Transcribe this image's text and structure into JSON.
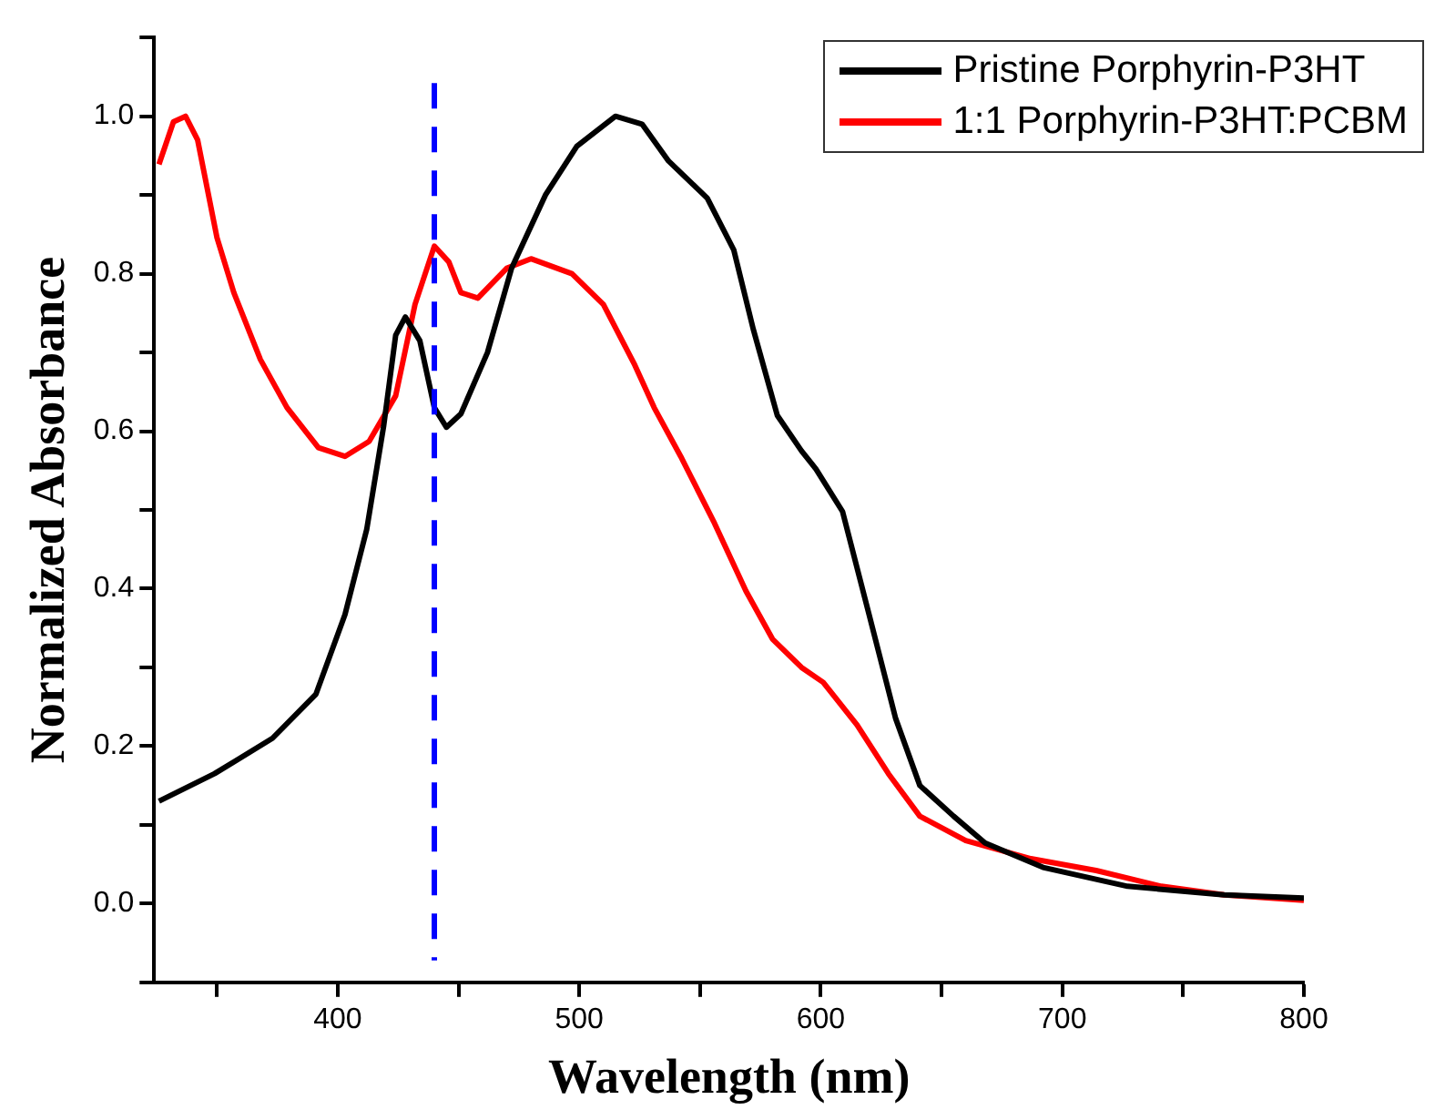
{
  "chart_data": {
    "type": "line",
    "xlabel": "Wavelength (nm)",
    "ylabel": "Normalized Absorbance",
    "xlim": [
      324,
      800
    ],
    "ylim": [
      -0.1,
      1.1
    ],
    "xticks": [
      {
        "value": 350,
        "label": null
      },
      400,
      {
        "value": 450,
        "label": null
      },
      500,
      {
        "value": 550,
        "label": null
      },
      600,
      {
        "value": 650,
        "label": null
      },
      700,
      {
        "value": 750,
        "label": null
      },
      800
    ],
    "yticks": [
      {
        "value": -0.1,
        "label": null
      },
      {
        "value": 0,
        "label": "0.0"
      },
      {
        "value": 0.1,
        "label": null
      },
      0.2,
      {
        "value": 0.3,
        "label": null
      },
      0.4,
      {
        "value": 0.5,
        "label": null
      },
      0.6,
      {
        "value": 0.7,
        "label": null
      },
      0.8,
      {
        "value": 0.9,
        "label": null
      },
      {
        "value": 1,
        "label": "1.0"
      },
      {
        "value": 1.1,
        "label": null
      }
    ],
    "grid": false,
    "legend": "top right",
    "marker": "none",
    "line_style": "solid",
    "ref_lines": [
      {
        "axis": "x",
        "value": 440,
        "color": "#0000ff",
        "line_style": "dashed"
      }
    ],
    "series": [
      {
        "name": "Pristine Porphyrin-P3HT",
        "color": "#000000",
        "x": [
          326,
          349,
          373,
          391,
          403,
          412,
          419,
          424,
          428,
          434,
          440,
          445,
          451,
          462,
          472,
          486,
          499,
          515,
          526,
          537,
          553,
          564,
          572,
          582,
          592,
          598,
          609,
          620,
          631,
          641,
          655,
          668,
          692,
          727,
          767,
          800
        ],
        "values": [
          0.13,
          0.165,
          0.21,
          0.266,
          0.367,
          0.475,
          0.606,
          0.722,
          0.745,
          0.715,
          0.63,
          0.605,
          0.622,
          0.7,
          0.807,
          0.9,
          0.962,
          1.0,
          0.99,
          0.943,
          0.896,
          0.83,
          0.73,
          0.62,
          0.575,
          0.552,
          0.498,
          0.367,
          0.235,
          0.15,
          0.111,
          0.077,
          0.046,
          0.022,
          0.011,
          0.007
        ]
      },
      {
        "name": "1:1 Porphyrin-P3HT:PCBM",
        "color": "#ff0000",
        "x": [
          326,
          332,
          337,
          342,
          350,
          357,
          368,
          379,
          392,
          403,
          413,
          424,
          432,
          440,
          446,
          451,
          458,
          470,
          480,
          497,
          510,
          523,
          531,
          542,
          556,
          569,
          580,
          592,
          601,
          615,
          628,
          641,
          660,
          687,
          714,
          741,
          767,
          800
        ],
        "values": [
          0.939,
          0.993,
          1.0,
          0.97,
          0.846,
          0.776,
          0.691,
          0.63,
          0.579,
          0.568,
          0.587,
          0.645,
          0.761,
          0.835,
          0.815,
          0.776,
          0.769,
          0.807,
          0.819,
          0.8,
          0.761,
          0.684,
          0.63,
          0.568,
          0.483,
          0.397,
          0.336,
          0.3,
          0.281,
          0.227,
          0.165,
          0.111,
          0.08,
          0.057,
          0.042,
          0.022,
          0.011,
          0.004
        ]
      }
    ]
  }
}
